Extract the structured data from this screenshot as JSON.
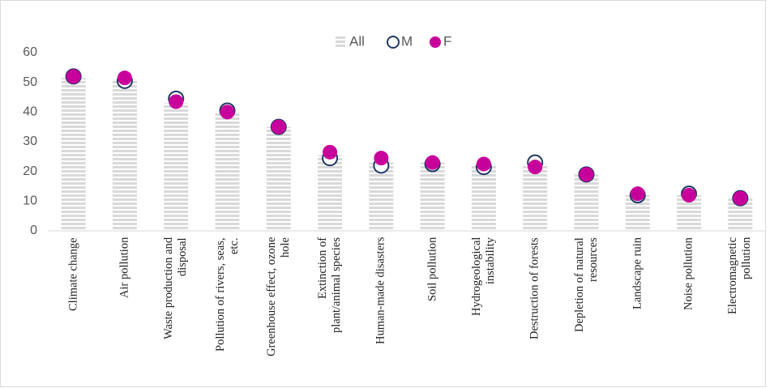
{
  "chart_data": {
    "type": "bar_dot",
    "categories": [
      "Climate change",
      "Air pollution",
      "Waste production and disposal",
      "Pollution of rivers, seas, etc.",
      "Greenhouse effect, ozone hole",
      "Extinction of plant/animal species",
      "Human-made disasters",
      "Soil pollution",
      "Hydrogeological instability",
      "Destruction of forests",
      "Depletion of natural resources",
      "Landscape ruin",
      "Noise pollution",
      "Electromagnetic pollution"
    ],
    "series": [
      {
        "name": "All",
        "color": "#d9d9d9",
        "values": [
          51.5,
          51,
          43,
          40,
          35,
          25.5,
          23,
          23,
          22,
          22.5,
          19,
          12,
          12,
          11
        ]
      },
      {
        "name": "M",
        "color": "#203864",
        "values": [
          52,
          50.5,
          44.5,
          40.5,
          35,
          24.5,
          22,
          22.5,
          21.5,
          23,
          19,
          12,
          12.5,
          11
        ]
      },
      {
        "name": "F",
        "color": "#c8009b",
        "values": [
          52,
          51.5,
          43.5,
          40,
          35,
          26.5,
          24.5,
          23,
          22.5,
          21.5,
          19,
          12.5,
          12,
          11
        ]
      }
    ],
    "ylim": [
      0,
      60
    ],
    "yticks": [
      0,
      10,
      20,
      30,
      40,
      50,
      60
    ],
    "legend": "top"
  }
}
